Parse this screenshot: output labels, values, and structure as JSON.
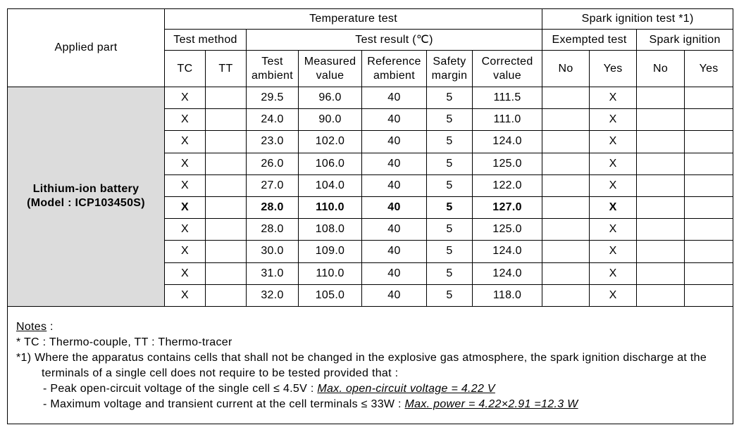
{
  "header": {
    "applied_part": "Applied part",
    "temperature_test": "Temperature test",
    "spark_ignition_test": "Spark ignition test *1)",
    "test_method": "Test method",
    "test_result": "Test result (℃)",
    "exempted_test": "Exempted test",
    "spark_ignition": "Spark ignition",
    "tc": "TC",
    "tt": "TT",
    "test_ambient": "Test ambient",
    "measured_value": "Measured value",
    "reference_ambient": "Reference ambient",
    "safety_margin": "Safety margin",
    "corrected_value": "Corrected value",
    "exempted_no": "No",
    "exempted_yes": "Yes",
    "spark_no": "No",
    "spark_yes": "Yes"
  },
  "part": {
    "name": "Lithium-ion battery",
    "model": "(Model : ICP103450S)"
  },
  "highlight_row": 5,
  "rows": [
    {
      "tc": "X",
      "ambient": "29.5",
      "measured": "96.0",
      "reference": "40",
      "margin": "5",
      "corrected": "111.5",
      "exempted_yes": "X"
    },
    {
      "tc": "X",
      "ambient": "24.0",
      "measured": "90.0",
      "reference": "40",
      "margin": "5",
      "corrected": "111.0",
      "exempted_yes": "X"
    },
    {
      "tc": "X",
      "ambient": "23.0",
      "measured": "102.0",
      "reference": "40",
      "margin": "5",
      "corrected": "124.0",
      "exempted_yes": "X"
    },
    {
      "tc": "X",
      "ambient": "26.0",
      "measured": "106.0",
      "reference": "40",
      "margin": "5",
      "corrected": "125.0",
      "exempted_yes": "X"
    },
    {
      "tc": "X",
      "ambient": "27.0",
      "measured": "104.0",
      "reference": "40",
      "margin": "5",
      "corrected": "122.0",
      "exempted_yes": "X"
    },
    {
      "tc": "X",
      "ambient": "28.0",
      "measured": "110.0",
      "reference": "40",
      "margin": "5",
      "corrected": "127.0",
      "exempted_yes": "X"
    },
    {
      "tc": "X",
      "ambient": "28.0",
      "measured": "108.0",
      "reference": "40",
      "margin": "5",
      "corrected": "125.0",
      "exempted_yes": "X"
    },
    {
      "tc": "X",
      "ambient": "30.0",
      "measured": "109.0",
      "reference": "40",
      "margin": "5",
      "corrected": "124.0",
      "exempted_yes": "X"
    },
    {
      "tc": "X",
      "ambient": "31.0",
      "measured": "110.0",
      "reference": "40",
      "margin": "5",
      "corrected": "124.0",
      "exempted_yes": "X"
    },
    {
      "tc": "X",
      "ambient": "32.0",
      "measured": "105.0",
      "reference": "40",
      "margin": "5",
      "corrected": "118.0",
      "exempted_yes": "X"
    }
  ],
  "notes": {
    "label": "Notes",
    "label_suffix": " :",
    "items": [
      "* TC : Thermo-couple, TT : Thermo-tracer",
      "*1) Where the apparatus contains cells that shall not be changed in the explosive gas atmosphere, the spark ignition discharge at the terminals of a single cell does not require to be tested provided that :"
    ],
    "conditions": [
      {
        "text": "- Peak open-circuit voltage of the single cell ≤ 4.5V : ",
        "value": "Max. open-circuit voltage = 4.22 V"
      },
      {
        "text": "- Maximum voltage and transient current at the cell terminals ≤ 33W : ",
        "value": "Max. power = 4.22×2.91 =12.3 W"
      }
    ]
  }
}
